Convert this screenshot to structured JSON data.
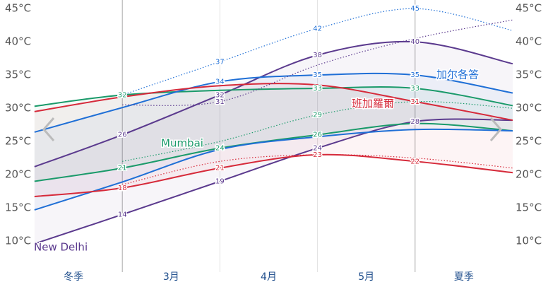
{
  "chart_data": {
    "type": "line",
    "xlim": [
      0,
      5
    ],
    "xticks": [
      1,
      2,
      3,
      4
    ],
    "x": [
      0.1,
      1,
      2,
      3,
      4,
      5
    ],
    "categories": [
      "冬季",
      "3月",
      "4月",
      "5月",
      "夏季"
    ],
    "ylim": [
      6.6,
      46.3
    ],
    "yticks": [
      {
        "value": 10,
        "label": "10°C"
      },
      {
        "value": 15,
        "label": "15°C"
      },
      {
        "value": 20,
        "label": "20°C"
      },
      {
        "value": 25,
        "label": "25°C"
      },
      {
        "value": 30,
        "label": "30°C"
      },
      {
        "value": 35,
        "label": "35°C"
      },
      {
        "value": 40,
        "label": "40°C"
      },
      {
        "value": 45,
        "label": "45°C"
      }
    ],
    "grid": true,
    "series": [
      {
        "name": "New Delhi",
        "color": "#5b3a8e",
        "high": [
          21.2,
          26,
          32,
          38,
          40,
          36.7
        ],
        "high_labels": [
          null,
          "26",
          "32",
          "38",
          "40",
          null
        ],
        "low": [
          9.6,
          14,
          19,
          24,
          28,
          28.2
        ],
        "low_labels": [
          null,
          "14",
          "19",
          "24",
          "28",
          null
        ]
      },
      {
        "name": "Mumbai",
        "color": "#1a9a6a",
        "high": [
          30.3,
          32,
          32.7,
          33,
          33,
          30.4
        ],
        "high_labels": [
          null,
          "32",
          null,
          "33",
          "33",
          null
        ],
        "low": [
          19,
          21,
          24,
          26,
          27.7,
          26.6
        ],
        "low_labels": [
          null,
          "21",
          "24",
          "26",
          null,
          null
        ]
      },
      {
        "name": "加尔各答",
        "color": "#1f6fd6",
        "high": [
          26.4,
          30.1,
          34,
          35,
          35,
          32.3
        ],
        "high_labels": [
          null,
          null,
          "34",
          "35",
          "35",
          null
        ],
        "low": [
          14.7,
          18.9,
          23.8,
          25.7,
          26.8,
          26.6
        ],
        "low_labels": [
          null,
          null,
          null,
          null,
          null,
          null
        ]
      },
      {
        "name": "班加羅爾",
        "color": "#d62a3a",
        "high": [
          29.5,
          31.7,
          33.4,
          33.5,
          31,
          28.2
        ],
        "high_labels": [
          null,
          null,
          null,
          null,
          "31",
          null
        ],
        "low": [
          16.7,
          18,
          21,
          23,
          22,
          20.3
        ],
        "low_labels": [
          null,
          "18",
          "21",
          "23",
          "22",
          null
        ]
      }
    ],
    "records": [
      {
        "color": "#1f6fd6",
        "x": [
          1,
          2,
          3,
          4,
          5
        ],
        "values": [
          32,
          37,
          42,
          45,
          41.7
        ],
        "value_labels": [
          null,
          "37",
          "42",
          "45",
          null
        ]
      },
      {
        "color": "#5b3a8e",
        "x": [
          1,
          2,
          3,
          4,
          5
        ],
        "values": [
          30.5,
          31,
          36.5,
          40.5,
          43.3
        ],
        "value_labels": [
          null,
          "31",
          null,
          null,
          null
        ]
      },
      {
        "color": "#1a9a6a",
        "x": [
          1,
          2,
          3,
          4,
          5
        ],
        "values": [
          22,
          25,
          29,
          31,
          30
        ],
        "value_labels": [
          null,
          null,
          "29",
          null,
          null
        ]
      },
      {
        "color": "#d62a3a",
        "x": [
          1,
          2,
          3,
          4,
          5
        ],
        "values": [
          18.5,
          22,
          23,
          22.5,
          21
        ],
        "value_labels": [
          null,
          null,
          null,
          null,
          null
        ]
      }
    ]
  }
}
